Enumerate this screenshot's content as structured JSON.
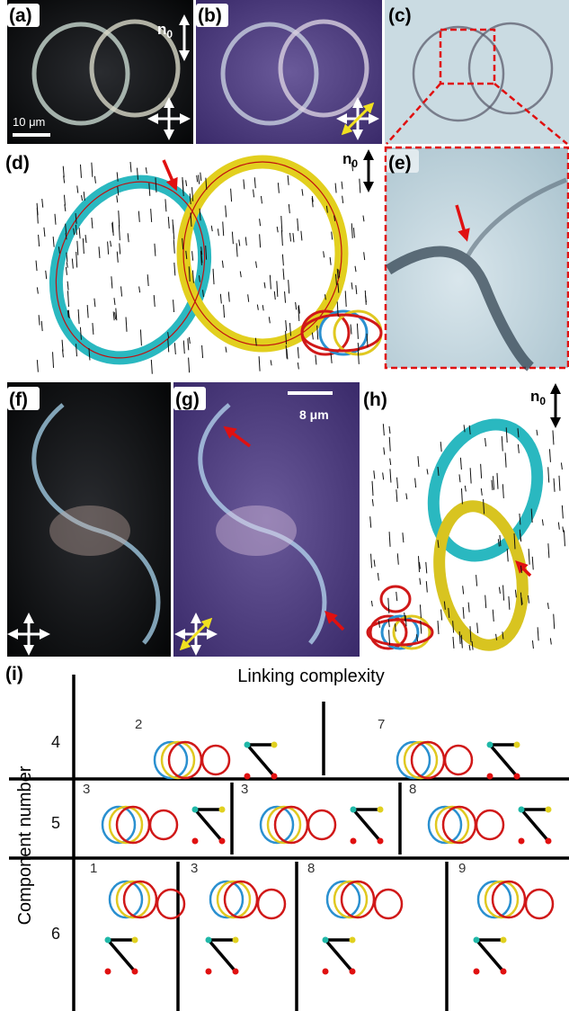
{
  "panels": [
    "(a)",
    "(b)",
    "(c)",
    "(d)",
    "(e)",
    "(f)",
    "(g)",
    "(h)",
    "(i)"
  ],
  "director_labels": [
    {
      "symbol": "n",
      "subscript": "0"
    },
    {
      "symbol": "n",
      "subscript": "0"
    },
    {
      "symbol": "n",
      "subscript": "0"
    }
  ],
  "scale_bars": [
    "10 μm",
    "8 μm"
  ],
  "grid": {
    "title": "Linking complexity",
    "y_label": "Component number",
    "rows": [
      {
        "label": "4",
        "cells": [
          "2",
          "7"
        ]
      },
      {
        "label": "5",
        "cells": [
          "3",
          "3",
          "8"
        ]
      },
      {
        "label": "6",
        "cells": [
          "1",
          "3",
          "8",
          "9"
        ]
      }
    ]
  }
}
